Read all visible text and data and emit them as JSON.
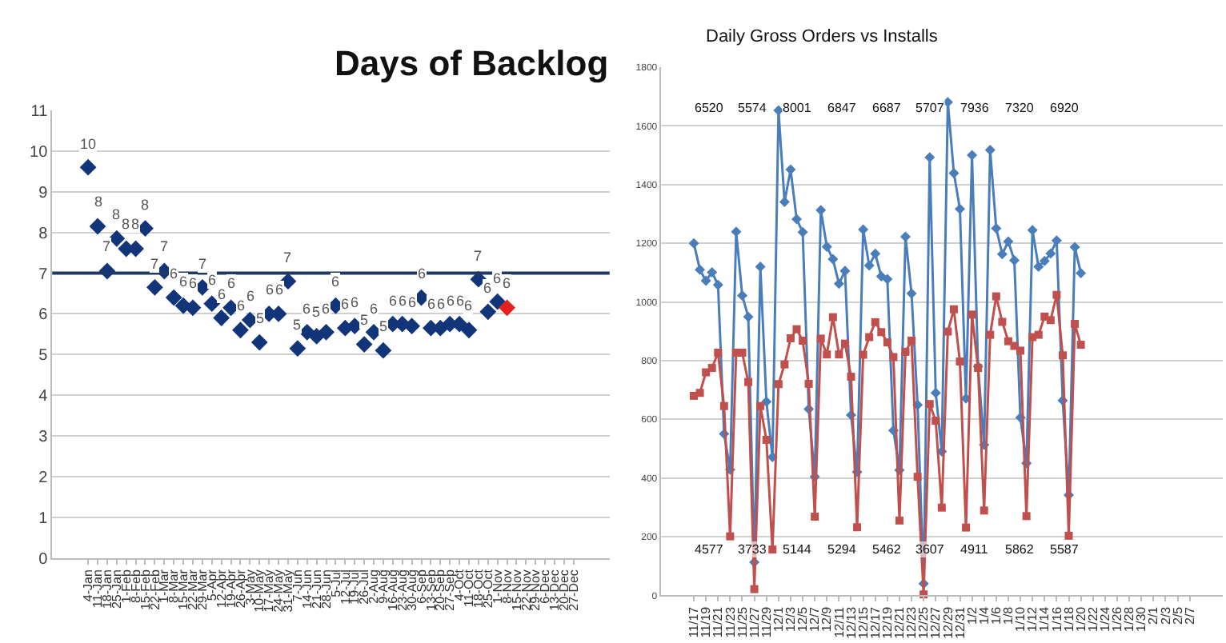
{
  "chart_data": [
    {
      "type": "scatter",
      "title": "Days of Backlog",
      "categories": [
        "4-Jan",
        "11-Jan",
        "18-Jan",
        "25-Jan",
        "1-Feb",
        "8-Feb",
        "15-Feb",
        "22-Feb",
        "1-Mar",
        "8-Mar",
        "15-Mar",
        "22-Mar",
        "29-Mar",
        "5-Apr",
        "12-Apr",
        "19-Apr",
        "26-Apr",
        "3-May",
        "10-May",
        "17-May",
        "24-May",
        "31-May",
        "7-Jun",
        "14-Jun",
        "21-Jun",
        "28-Jun",
        "5-Jul",
        "12-Jul",
        "19-Jul",
        "26-Jul",
        "2-Aug",
        "9-Aug",
        "16-Aug",
        "23-Aug",
        "30-Aug",
        "6-Sep",
        "13-Sep",
        "20-Sep",
        "27-Sep",
        "4-Oct",
        "11-Oct",
        "18-Oct",
        "25-Oct",
        "1-Nov",
        "8-Nov",
        "15-Nov",
        "22-Nov",
        "29-Nov",
        "6-Dec",
        "13-Dec",
        "20-Dec",
        "27-Dec"
      ],
      "series": [
        {
          "color": "#12357a",
          "colors": [
            "#12357a",
            "#12357a",
            "#12357a",
            "#12357a",
            "#12357a",
            "#12357a",
            "#12357a",
            "#12357a",
            "#12357a",
            "#12357a",
            "#12357a",
            "#12357a",
            "#12357a",
            "#12357a",
            "#12357a",
            "#12357a",
            "#12357a",
            "#12357a",
            "#12357a",
            "#12357a",
            "#12357a",
            "#12357a",
            "#12357a",
            "#12357a",
            "#12357a",
            "#12357a",
            "#12357a",
            "#12357a",
            "#12357a",
            "#12357a",
            "#12357a",
            "#12357a",
            "#12357a",
            "#12357a",
            "#12357a",
            "#12357a",
            "#12357a",
            "#12357a",
            "#12357a",
            "#12357a",
            "#12357a",
            "#12357a",
            "#12357a",
            "#12357a",
            "#e3201b",
            null,
            null,
            null,
            null,
            null,
            null,
            null
          ],
          "values": [
            9.6,
            8.15,
            7.05,
            7.85,
            7.6,
            7.6,
            8.1,
            6.65,
            7.05,
            6.4,
            6.2,
            6.15,
            6.65,
            6.25,
            5.9,
            6.15,
            5.6,
            5.85,
            5.3,
            6.0,
            6.0,
            6.8,
            5.15,
            5.55,
            5.45,
            5.55,
            6.2,
            5.65,
            5.7,
            5.25,
            5.55,
            5.1,
            5.75,
            5.75,
            5.7,
            6.4,
            5.65,
            5.65,
            5.75,
            5.75,
            5.6,
            6.85,
            6.05,
            6.3,
            6.15,
            null,
            null,
            null,
            null,
            null,
            null,
            null
          ],
          "value_labels": [
            "10",
            "8",
            "7",
            "8",
            "8",
            "8",
            "8",
            "7",
            "7",
            "6",
            "6",
            "6",
            "7",
            "6",
            "6",
            "6",
            "6",
            "6",
            "5",
            "6",
            "6",
            "7",
            "5",
            "6",
            "5",
            "6",
            "6",
            "6",
            "6",
            "5",
            "6",
            "5",
            "6",
            "6",
            "6",
            "6",
            "6",
            "6",
            "6",
            "6",
            "6",
            "7",
            "6",
            "6",
            "6",
            null,
            null,
            null,
            null,
            null,
            null,
            null
          ]
        }
      ],
      "marker": "diamond",
      "ylim": [
        0,
        11
      ],
      "yticks": [
        0,
        1,
        2,
        3,
        4,
        5,
        6,
        7,
        8,
        9,
        10,
        11
      ],
      "grid": "y",
      "ref_lines": [
        {
          "axis": "y",
          "value": 7,
          "color": "#1f3864"
        }
      ]
    },
    {
      "type": "line",
      "title": "Daily Gross Orders vs Installs",
      "categories": [
        "11/17",
        null,
        "11/19",
        null,
        "11/21",
        null,
        "11/23",
        null,
        "11/25",
        null,
        "11/27",
        null,
        "11/29",
        null,
        "12/1",
        null,
        "12/3",
        null,
        "12/5",
        null,
        "12/7",
        null,
        "12/9",
        null,
        "12/11",
        null,
        "12/13",
        null,
        "12/15",
        null,
        "12/17",
        null,
        "12/19",
        null,
        "12/21",
        null,
        "12/23",
        null,
        "12/25",
        null,
        "12/27",
        null,
        "12/29",
        null,
        "12/31",
        null,
        "1/2",
        null,
        "1/4",
        null,
        "1/6",
        null,
        "1/8",
        null,
        "1/10",
        null,
        "1/12",
        null,
        "1/14",
        null,
        "1/16",
        null,
        "1/18",
        null,
        "1/20",
        null,
        "1/22",
        null,
        "1/24",
        null,
        "1/26",
        null,
        "1/28",
        null,
        "1/30",
        null,
        "2/1",
        null,
        "2/3",
        null,
        "2/5",
        null,
        "2/7"
      ],
      "series": [
        {
          "color": "#4a7ebb",
          "marker": "diamond",
          "values": [
            1200,
            1110,
            1072,
            1101,
            1058,
            550,
            428,
            1239,
            1022,
            949,
            113,
            1120,
            660,
            471,
            1653,
            1341,
            1451,
            1282,
            1238,
            635,
            404,
            1313,
            1188,
            1146,
            1062,
            1106,
            614,
            420,
            1247,
            1124,
            1164,
            1087,
            1078,
            562,
            427,
            1222,
            1029,
            649,
            40,
            1493,
            690,
            490,
            1681,
            1439,
            1317,
            671,
            1500,
            780,
            513,
            1518,
            1251,
            1163,
            1206,
            1142,
            606,
            450,
            1245,
            1120,
            1140,
            1165,
            1209,
            664,
            342,
            1187,
            1098,
            null,
            null,
            null,
            null,
            null,
            null,
            null,
            null,
            null,
            null,
            null,
            null,
            null,
            null,
            null,
            null,
            null,
            null
          ]
        },
        {
          "color": "#c0504d",
          "marker": "square",
          "values": [
            680,
            690,
            760,
            775,
            827,
            645,
            201,
            827,
            827,
            727,
            21,
            645,
            530,
            156,
            720,
            787,
            876,
            907,
            868,
            721,
            268,
            875,
            821,
            948,
            821,
            858,
            745,
            232,
            820,
            880,
            931,
            897,
            862,
            812,
            255,
            830,
            868,
            404,
            3,
            652,
            595,
            299,
            899,
            975,
            797,
            231,
            957,
            775,
            289,
            888,
            1019,
            932,
            866,
            850,
            834,
            270,
            880,
            888,
            950,
            938,
            1024,
            818,
            203,
            925,
            854,
            null,
            null,
            null,
            null,
            null,
            null,
            null,
            null,
            null,
            null,
            null,
            null,
            null,
            null,
            null,
            null,
            null,
            null
          ]
        }
      ],
      "ylim": [
        0,
        1800
      ],
      "yticks": [
        0,
        200,
        400,
        600,
        800,
        1000,
        1200,
        1400,
        1600,
        1800
      ],
      "grid": "y",
      "annotations": [
        "6520",
        "5574",
        "8001",
        "6847",
        "6687",
        "5707",
        "7936",
        "7320",
        "6920",
        "4577",
        "3733",
        "5144",
        "5294",
        "5462",
        "3607",
        "4911",
        "5862",
        "5587"
      ]
    }
  ]
}
